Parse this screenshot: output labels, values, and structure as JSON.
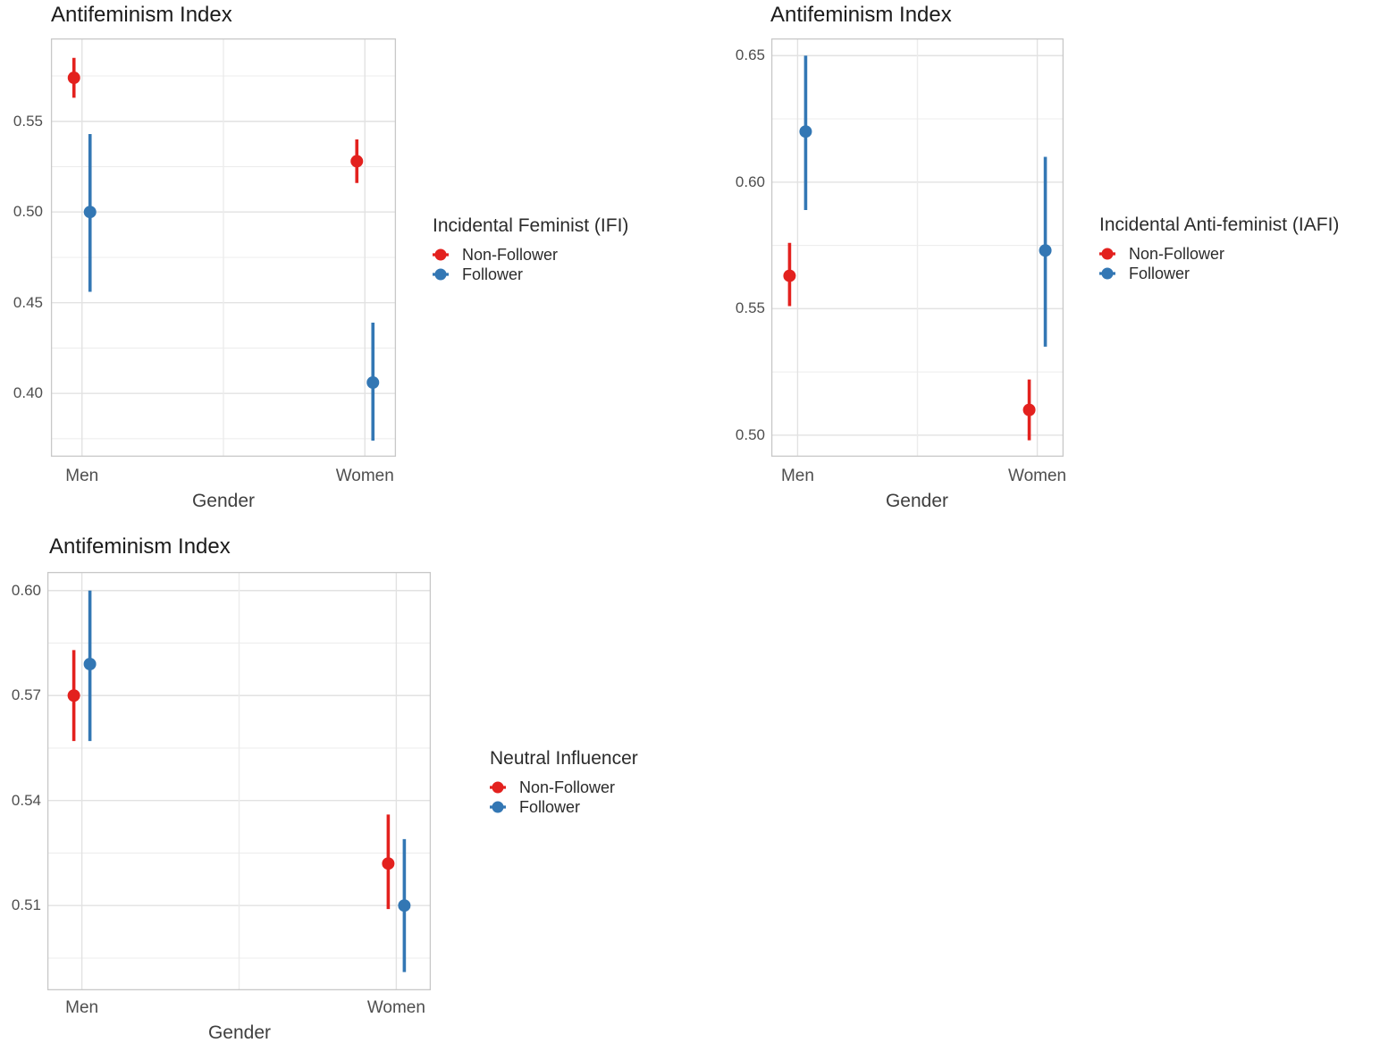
{
  "colors": {
    "background": "#ffffff",
    "grid_major": "#e2e2e2",
    "grid_minor": "#ececec",
    "panel_border": "#c8c8c8",
    "tick_text": "#4e4e4e",
    "title_text": "#1b1b1b",
    "non_follower_red": "#e3211e",
    "follower_blue": "#3377b4"
  },
  "chart_data": [
    {
      "type": "pointrange",
      "title": "Antifeminism Index",
      "xlabel": "Gender",
      "ylabel": "",
      "categories": [
        "Men",
        "Women"
      ],
      "y_ticks": [
        0.4,
        0.45,
        0.5,
        0.55
      ],
      "ylim": [
        0.3651,
        0.5957
      ],
      "grid": true,
      "legend_position": "right",
      "legend_title": "Incidental Feminist (IFI)",
      "series": [
        {
          "name": "Non-Follower",
          "color": "#e3211e",
          "points": [
            {
              "category": "Men",
              "y": 0.574,
              "ymin": 0.563,
              "ymax": 0.585
            },
            {
              "category": "Women",
              "y": 0.528,
              "ymin": 0.516,
              "ymax": 0.54
            }
          ]
        },
        {
          "name": "Follower",
          "color": "#3377b4",
          "points": [
            {
              "category": "Men",
              "y": 0.5,
              "ymin": 0.456,
              "ymax": 0.543
            },
            {
              "category": "Women",
              "y": 0.406,
              "ymin": 0.374,
              "ymax": 0.439
            }
          ]
        }
      ]
    },
    {
      "type": "pointrange",
      "title": "Antifeminism Index",
      "xlabel": "Gender",
      "ylabel": "",
      "categories": [
        "Men",
        "Women"
      ],
      "y_ticks": [
        0.5,
        0.55,
        0.6,
        0.65
      ],
      "ylim": [
        0.4915,
        0.6568
      ],
      "grid": true,
      "legend_position": "right",
      "legend_title": "Incidental Anti-feminist (IAFI)",
      "series": [
        {
          "name": "Non-Follower",
          "color": "#e3211e",
          "points": [
            {
              "category": "Men",
              "y": 0.563,
              "ymin": 0.551,
              "ymax": 0.576
            },
            {
              "category": "Women",
              "y": 0.51,
              "ymin": 0.498,
              "ymax": 0.522
            }
          ]
        },
        {
          "name": "Follower",
          "color": "#3377b4",
          "points": [
            {
              "category": "Men",
              "y": 0.62,
              "ymin": 0.589,
              "ymax": 0.65
            },
            {
              "category": "Women",
              "y": 0.573,
              "ymin": 0.535,
              "ymax": 0.61
            }
          ]
        }
      ]
    },
    {
      "type": "pointrange",
      "title": "Antifeminism Index",
      "xlabel": "Gender",
      "ylabel": "",
      "categories": [
        "Men",
        "Women"
      ],
      "y_ticks": [
        0.51,
        0.54,
        0.57,
        0.6
      ],
      "ylim": [
        0.4858,
        0.6053
      ],
      "grid": true,
      "legend_position": "right",
      "legend_title": "Neutral Influencer",
      "series": [
        {
          "name": "Non-Follower",
          "color": "#e3211e",
          "points": [
            {
              "category": "Men",
              "y": 0.57,
              "ymin": 0.557,
              "ymax": 0.583
            },
            {
              "category": "Women",
              "y": 0.522,
              "ymin": 0.509,
              "ymax": 0.536
            }
          ]
        },
        {
          "name": "Follower",
          "color": "#3377b4",
          "points": [
            {
              "category": "Men",
              "y": 0.579,
              "ymin": 0.557,
              "ymax": 0.6
            },
            {
              "category": "Women",
              "y": 0.51,
              "ymin": 0.491,
              "ymax": 0.529
            }
          ]
        }
      ]
    }
  ]
}
